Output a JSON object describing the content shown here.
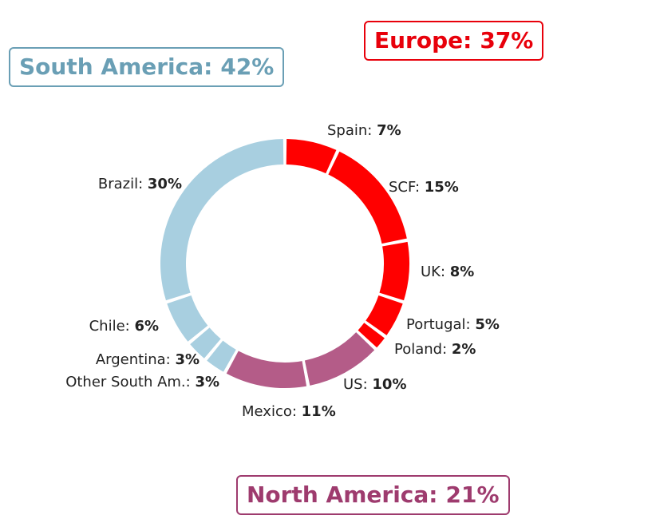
{
  "chart_data": {
    "type": "pie",
    "subtype": "donut",
    "title": "",
    "groups": [
      {
        "name": "South America",
        "percent": "42%",
        "color": "#6a9fb5"
      },
      {
        "name": "Europe",
        "percent": "37%",
        "color": "#e8000b"
      },
      {
        "name": "North America",
        "percent": "21%",
        "color": "#9e3b6e"
      }
    ],
    "slices": [
      {
        "label": "Spain",
        "value": 7,
        "display": "7%",
        "group": "Europe",
        "color": "#ff0000"
      },
      {
        "label": "SCF",
        "value": 15,
        "display": "15%",
        "group": "Europe",
        "color": "#ff0000"
      },
      {
        "label": "UK",
        "value": 8,
        "display": "8%",
        "group": "Europe",
        "color": "#ff0000"
      },
      {
        "label": "Portugal",
        "value": 5,
        "display": "5%",
        "group": "Europe",
        "color": "#ff0000"
      },
      {
        "label": "Poland",
        "value": 2,
        "display": "2%",
        "group": "Europe",
        "color": "#ff0000"
      },
      {
        "label": "US",
        "value": 10,
        "display": "10%",
        "group": "North America",
        "color": "#b45c88"
      },
      {
        "label": "Mexico",
        "value": 11,
        "display": "11%",
        "group": "North America",
        "color": "#b45c88"
      },
      {
        "label": "Other South Am.",
        "value": 3,
        "display": "3%",
        "group": "South America",
        "color": "#a8cfe0"
      },
      {
        "label": "Argentina",
        "value": 3,
        "display": "3%",
        "group": "South America",
        "color": "#a8cfe0"
      },
      {
        "label": "Chile",
        "value": 6,
        "display": "6%",
        "group": "South America",
        "color": "#a8cfe0"
      },
      {
        "label": "Brazil",
        "value": 30,
        "display": "30%",
        "group": "South America",
        "color": "#a8cfe0"
      }
    ]
  }
}
